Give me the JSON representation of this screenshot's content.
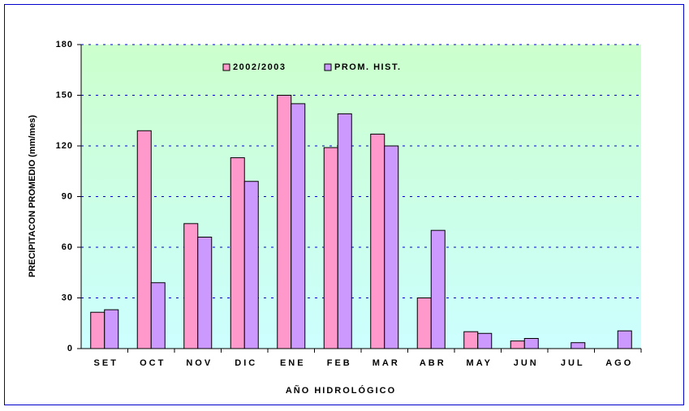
{
  "chart_data": {
    "type": "bar",
    "x_label": "AÑO HIDROLÓGICO",
    "y_label": "PRECIPITACON PROMEDIO (mm/mes)",
    "categories": [
      "SET",
      "OCT",
      "NOV",
      "DIC",
      "ENE",
      "FEB",
      "MAR",
      "ABR",
      "MAY",
      "JUN",
      "JUL",
      "AGO"
    ],
    "series": [
      {
        "name": "2002/2003",
        "color": "#ff99cc",
        "values": [
          21.5,
          129,
          74,
          113,
          150,
          119,
          127,
          30,
          10,
          4.5,
          null,
          null
        ]
      },
      {
        "name": "PROM. HIST.",
        "color": "#cc99ff",
        "values": [
          23,
          39,
          66,
          99,
          145,
          139,
          120,
          70,
          9,
          6,
          3.5,
          10.5
        ]
      }
    ],
    "ylim": [
      0,
      180
    ],
    "yticks": [
      0,
      30,
      60,
      90,
      120,
      150,
      180
    ],
    "grid": true
  }
}
